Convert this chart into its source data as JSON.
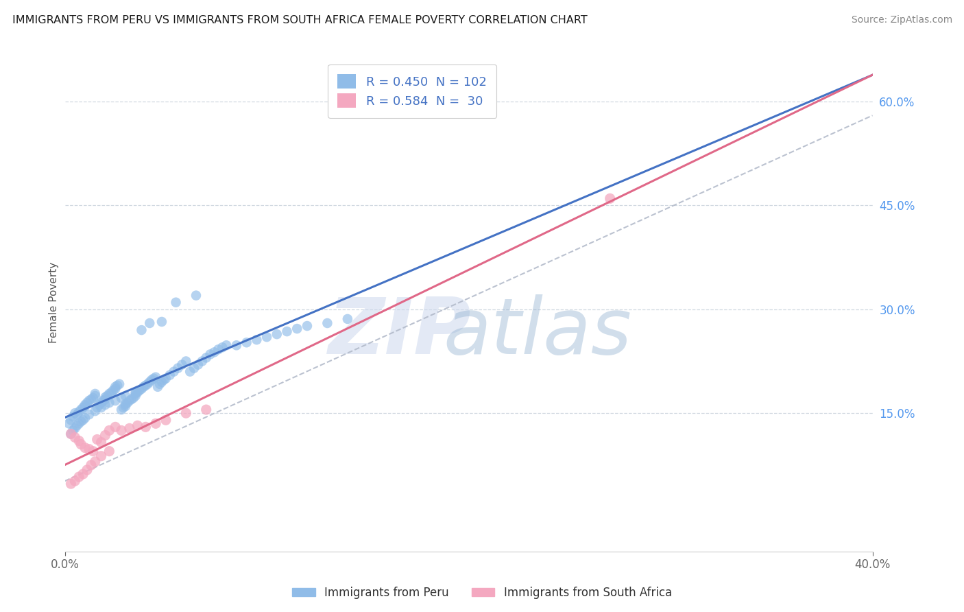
{
  "title": "IMMIGRANTS FROM PERU VS IMMIGRANTS FROM SOUTH AFRICA FEMALE POVERTY CORRELATION CHART",
  "source": "Source: ZipAtlas.com",
  "ylabel": "Female Poverty",
  "y_tick_labels": [
    "15.0%",
    "30.0%",
    "45.0%",
    "60.0%"
  ],
  "y_tick_values": [
    0.15,
    0.3,
    0.45,
    0.6
  ],
  "x_lim": [
    0.0,
    0.4
  ],
  "y_lim": [
    -0.05,
    0.67
  ],
  "legend_label_peru": "Immigrants from Peru",
  "legend_label_sa": "Immigrants from South Africa",
  "legend_r_peru": "R = 0.450",
  "legend_n_peru": "N = 102",
  "legend_r_sa": "R = 0.584",
  "legend_n_sa": "N =  30",
  "peru_color": "#90bce8",
  "sa_color": "#f4a8c0",
  "peru_line_color": "#4472c4",
  "sa_line_color": "#e06888",
  "dashed_line_color": "#b0b8c8",
  "background_color": "#ffffff",
  "grid_color": "#d0d8e0",
  "watermark": "ZIPatlas",
  "watermark_color": "#d8e4f0",
  "title_color": "#1a1a1a",
  "source_color": "#888888",
  "yaxis_tick_color": "#5599ee",
  "peru_x": [
    0.002,
    0.003,
    0.004,
    0.005,
    0.006,
    0.007,
    0.008,
    0.009,
    0.01,
    0.01,
    0.011,
    0.012,
    0.013,
    0.014,
    0.015,
    0.015,
    0.016,
    0.017,
    0.018,
    0.019,
    0.02,
    0.02,
    0.021,
    0.022,
    0.023,
    0.024,
    0.025,
    0.025,
    0.026,
    0.027,
    0.028,
    0.029,
    0.03,
    0.03,
    0.031,
    0.032,
    0.033,
    0.034,
    0.035,
    0.035,
    0.036,
    0.037,
    0.038,
    0.039,
    0.04,
    0.041,
    0.042,
    0.043,
    0.044,
    0.045,
    0.046,
    0.047,
    0.048,
    0.049,
    0.05,
    0.052,
    0.054,
    0.056,
    0.058,
    0.06,
    0.062,
    0.064,
    0.066,
    0.068,
    0.07,
    0.072,
    0.074,
    0.076,
    0.078,
    0.08,
    0.085,
    0.09,
    0.095,
    0.1,
    0.105,
    0.11,
    0.115,
    0.12,
    0.13,
    0.14,
    0.003,
    0.004,
    0.005,
    0.006,
    0.007,
    0.008,
    0.009,
    0.01,
    0.012,
    0.015,
    0.018,
    0.02,
    0.022,
    0.025,
    0.028,
    0.03,
    0.035,
    0.038,
    0.042,
    0.048,
    0.055,
    0.065
  ],
  "peru_y": [
    0.135,
    0.14,
    0.145,
    0.15,
    0.148,
    0.152,
    0.155,
    0.158,
    0.16,
    0.162,
    0.165,
    0.168,
    0.17,
    0.172,
    0.175,
    0.178,
    0.158,
    0.162,
    0.165,
    0.168,
    0.17,
    0.173,
    0.175,
    0.178,
    0.18,
    0.183,
    0.185,
    0.188,
    0.19,
    0.192,
    0.155,
    0.158,
    0.16,
    0.163,
    0.165,
    0.168,
    0.17,
    0.172,
    0.175,
    0.178,
    0.18,
    0.183,
    0.185,
    0.188,
    0.19,
    0.192,
    0.195,
    0.198,
    0.2,
    0.202,
    0.188,
    0.192,
    0.195,
    0.198,
    0.2,
    0.205,
    0.21,
    0.215,
    0.22,
    0.225,
    0.21,
    0.215,
    0.22,
    0.225,
    0.23,
    0.235,
    0.238,
    0.242,
    0.245,
    0.248,
    0.248,
    0.252,
    0.256,
    0.26,
    0.264,
    0.268,
    0.272,
    0.276,
    0.28,
    0.286,
    0.12,
    0.125,
    0.128,
    0.132,
    0.135,
    0.138,
    0.14,
    0.143,
    0.148,
    0.153,
    0.158,
    0.162,
    0.165,
    0.168,
    0.172,
    0.175,
    0.18,
    0.27,
    0.28,
    0.282,
    0.31,
    0.32
  ],
  "sa_x": [
    0.003,
    0.005,
    0.007,
    0.008,
    0.01,
    0.012,
    0.014,
    0.016,
    0.018,
    0.02,
    0.022,
    0.025,
    0.028,
    0.032,
    0.036,
    0.04,
    0.045,
    0.05,
    0.06,
    0.07,
    0.003,
    0.005,
    0.007,
    0.009,
    0.011,
    0.013,
    0.015,
    0.018,
    0.022,
    0.27
  ],
  "sa_y": [
    0.12,
    0.115,
    0.11,
    0.105,
    0.1,
    0.098,
    0.095,
    0.112,
    0.108,
    0.118,
    0.125,
    0.13,
    0.125,
    0.128,
    0.132,
    0.13,
    0.135,
    0.14,
    0.15,
    0.155,
    0.048,
    0.052,
    0.058,
    0.062,
    0.068,
    0.075,
    0.08,
    0.088,
    0.095,
    0.46
  ]
}
